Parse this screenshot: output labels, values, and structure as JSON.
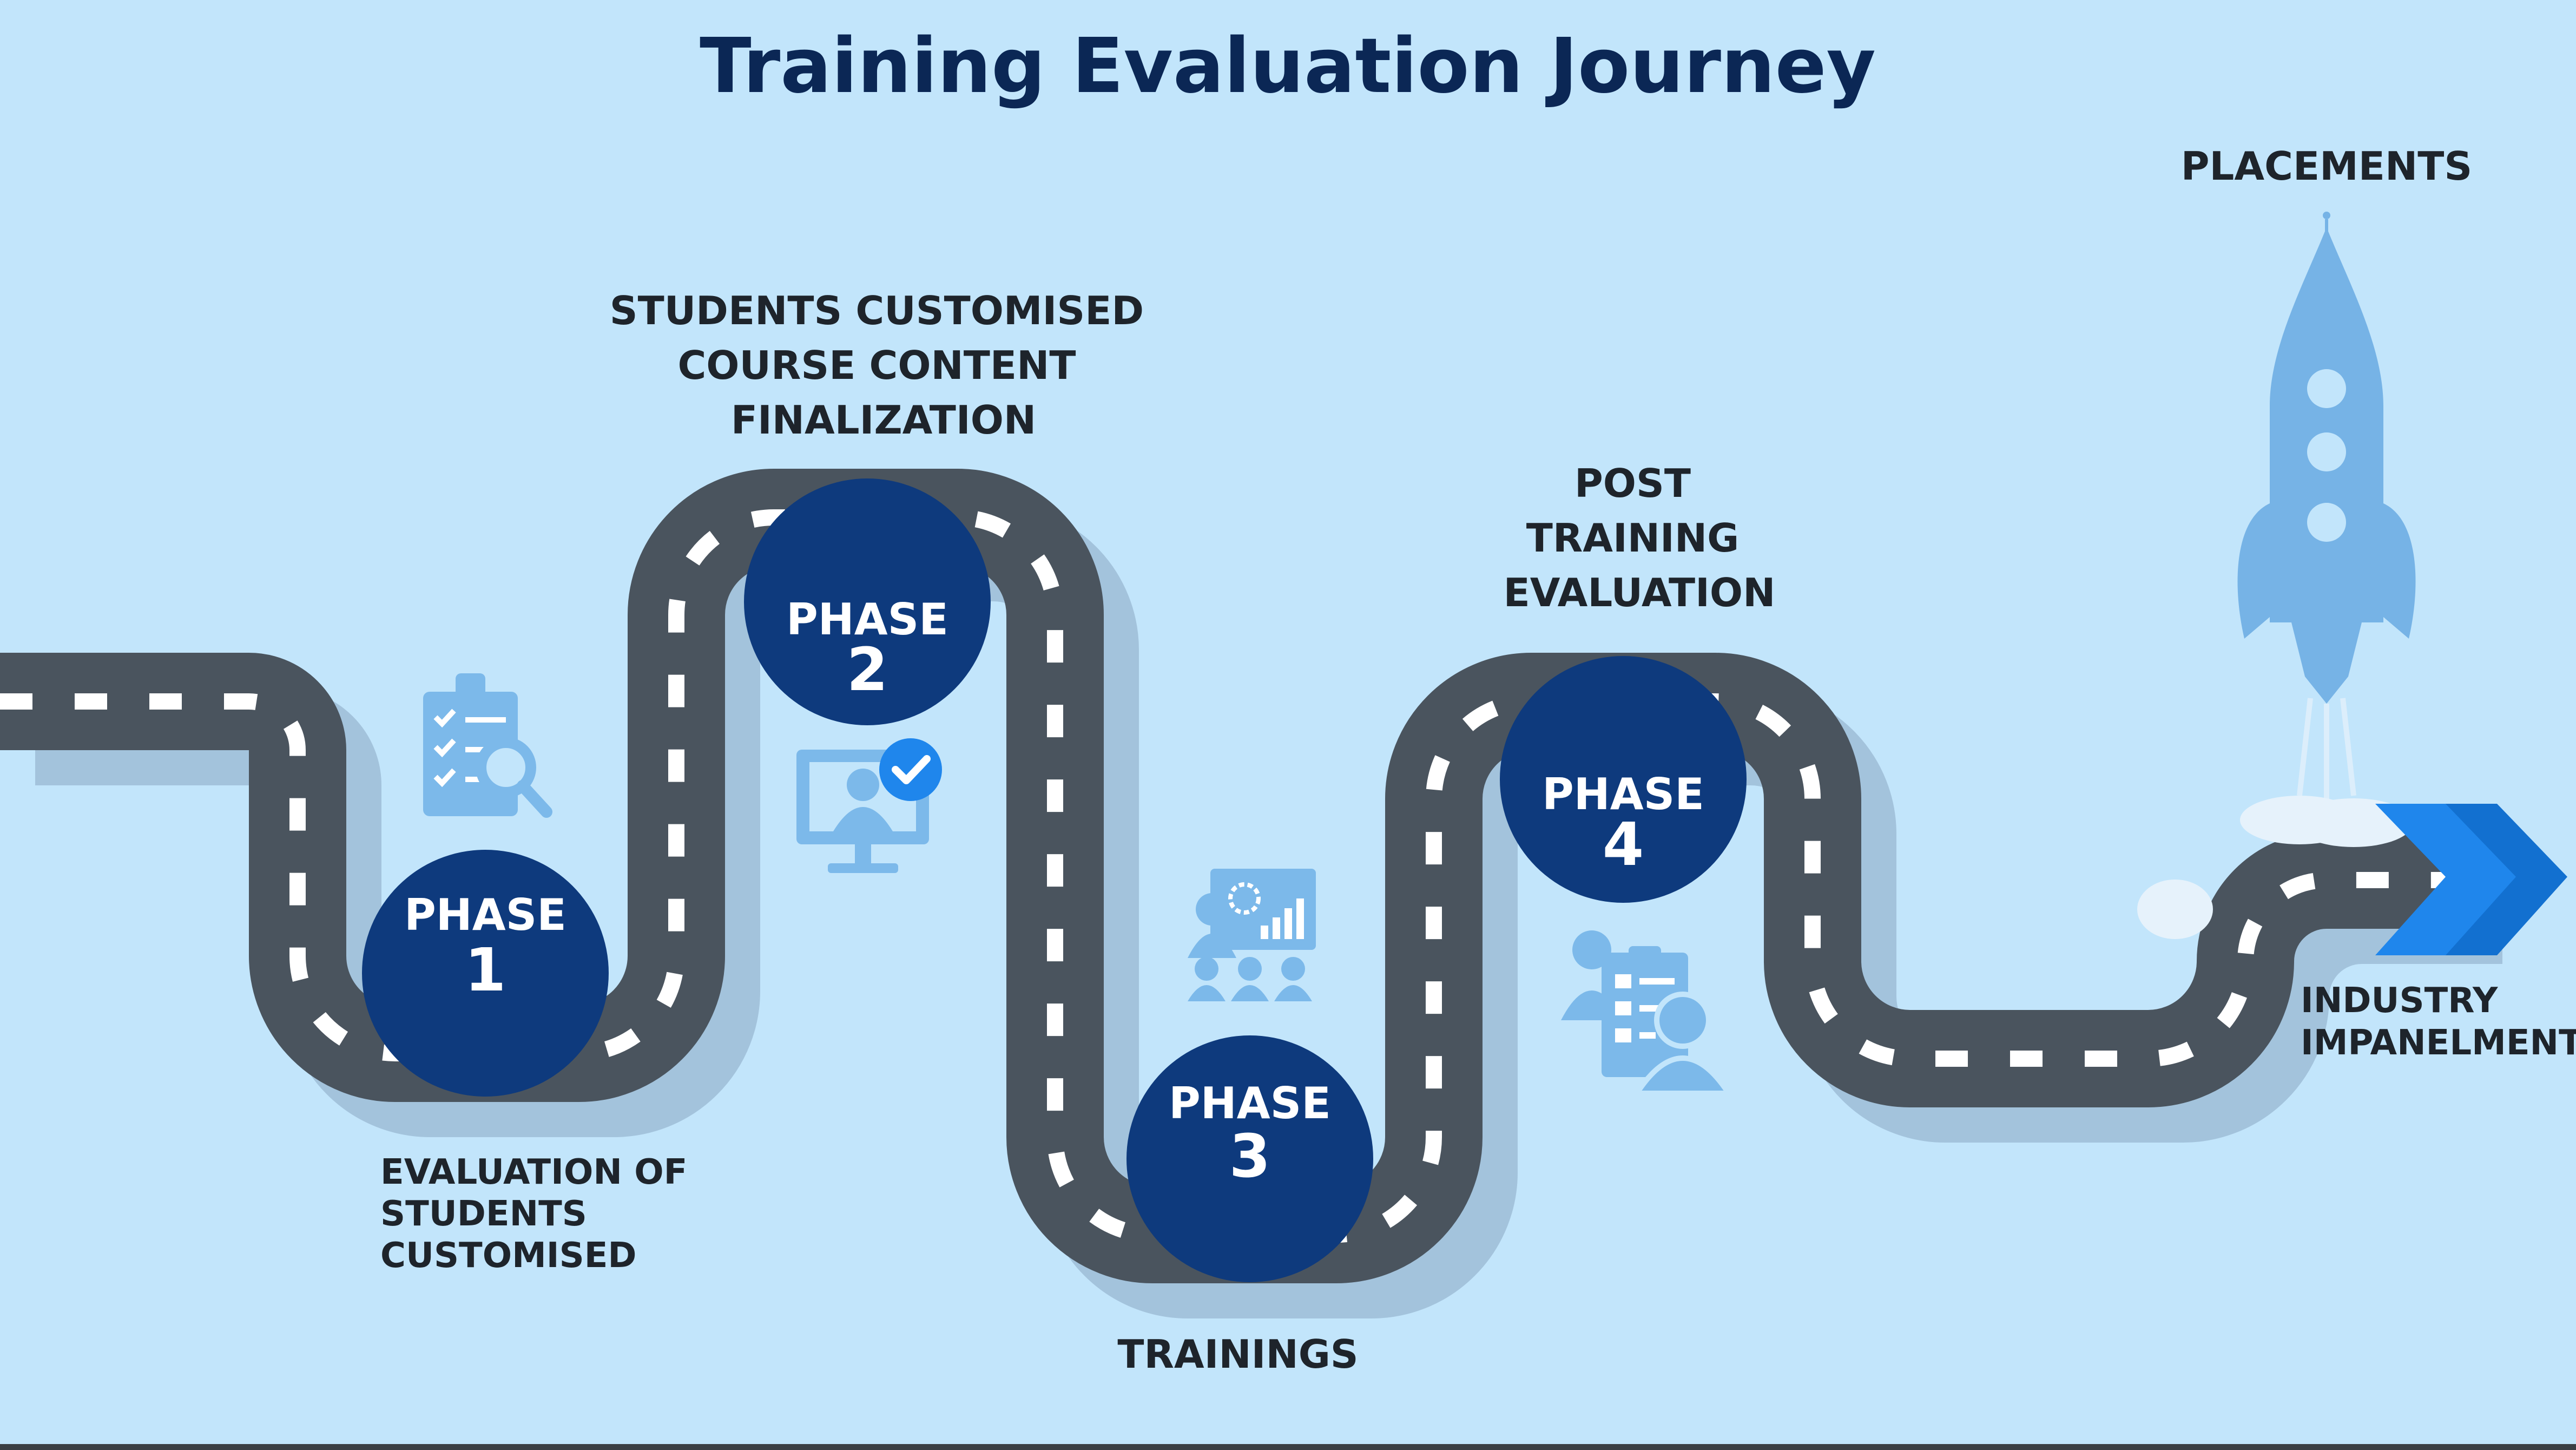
{
  "title": "Training Evaluation Journey",
  "colors": {
    "background": "#c2e5fb",
    "road": "#4a545e",
    "road_shadow": "#a3c3dc",
    "dash": "#ffffff",
    "phase_circle": "#0e3a7d",
    "title": "#0b2755",
    "label": "#1e242b",
    "icon": "#7cb9ea",
    "rocket": "#76b3e6",
    "arrow": "#1f86ec"
  },
  "phases": [
    {
      "word": "PHASE",
      "number": "1",
      "label": [
        "EVALUATION OF",
        "STUDENTS",
        "CUSTOMISED"
      ],
      "icon": "clipboard-search-icon"
    },
    {
      "word": "PHASE",
      "number": "2",
      "label": [
        "STUDENTS CUSTOMISED",
        "COURSE CONTENT",
        "FINALIZATION"
      ],
      "icon": "monitor-user-check-icon"
    },
    {
      "word": "PHASE",
      "number": "3",
      "label": [
        "TRAININGS"
      ],
      "icon": "presentation-team-icon"
    },
    {
      "word": "PHASE",
      "number": "4",
      "label": [
        "POST",
        "TRAINING",
        "EVALUATION"
      ],
      "icon": "evaluation-form-icon"
    }
  ],
  "end": {
    "goal_label": "PLACEMENTS",
    "goal_icon": "rocket-icon",
    "finish_label": [
      "INDUSTRY",
      "IMPANELMENT"
    ],
    "finish_icon": "double-chevron-right-icon"
  }
}
